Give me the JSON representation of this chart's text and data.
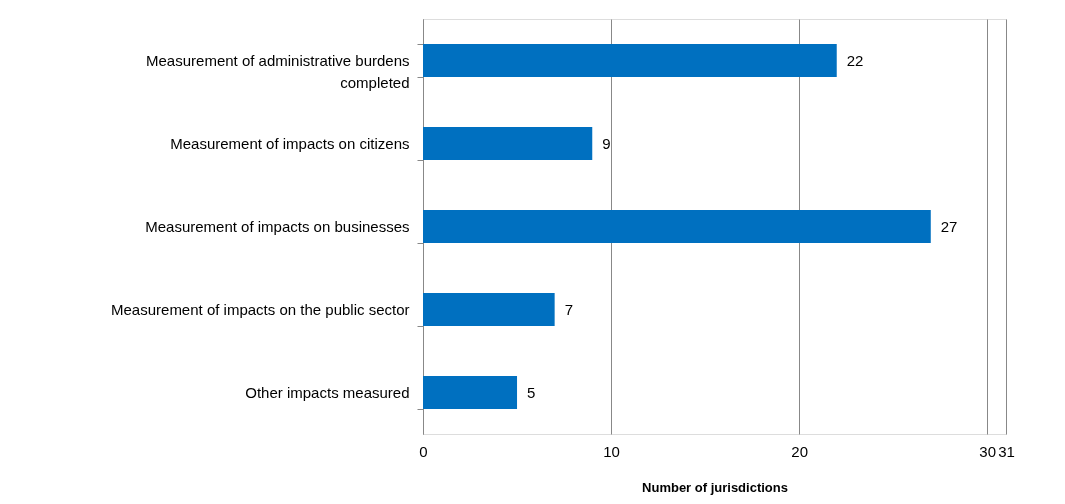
{
  "chart_data": {
    "type": "bar",
    "orientation": "horizontal",
    "xlabel": "Number of jurisdictions",
    "categories": [
      "Measurement of administrative burdens completed",
      "Measurement of impacts on citizens",
      "Measurement of impacts on businesses",
      "Measurement of impacts on the public sector",
      "Other impacts measured"
    ],
    "values": [
      22,
      9,
      27,
      7,
      5
    ],
    "color": "#0070c0",
    "data_labels": true,
    "xlim": [
      0,
      31
    ],
    "xticks": [
      0,
      10,
      20,
      30,
      31
    ],
    "grid": "x"
  }
}
